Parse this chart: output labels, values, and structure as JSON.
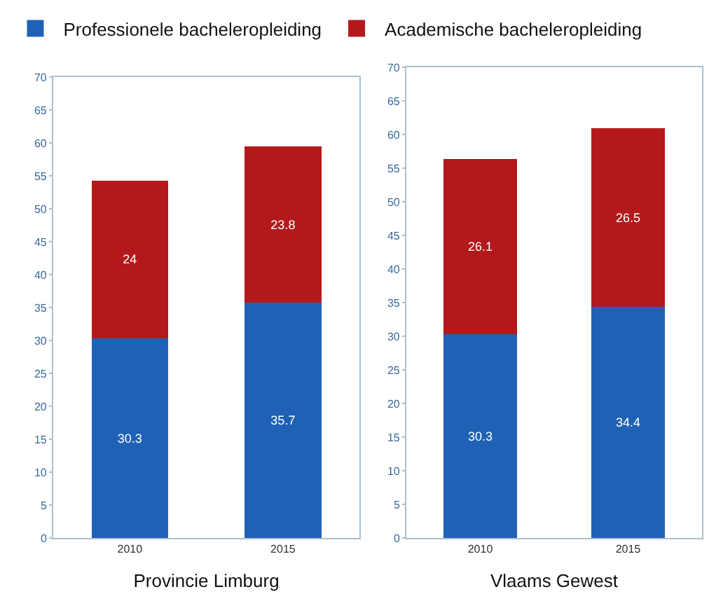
{
  "chart_data": [
    {
      "type": "bar",
      "stacked": true,
      "xlabel": "Provincie Limburg",
      "categories": [
        "2010",
        "2015"
      ],
      "ylim": [
        0,
        70
      ],
      "yticks": [
        0,
        5,
        10,
        15,
        20,
        25,
        30,
        35,
        40,
        45,
        50,
        55,
        60,
        65,
        70
      ],
      "grid": false,
      "legend": "top",
      "data_labels": true,
      "series": [
        {
          "name": "Professionele bacheleropleiding",
          "color": "#1f62b5",
          "values": [
            30.3,
            35.7
          ]
        },
        {
          "name": "Academische bacheleropleiding",
          "color": "#b3191c",
          "values": [
            24.0,
            23.8
          ]
        }
      ]
    },
    {
      "type": "bar",
      "stacked": true,
      "xlabel": "Vlaams Gewest",
      "categories": [
        "2010",
        "2015"
      ],
      "ylim": [
        0,
        70
      ],
      "yticks": [
        0,
        5,
        10,
        15,
        20,
        25,
        30,
        35,
        40,
        45,
        50,
        55,
        60,
        65,
        70
      ],
      "grid": false,
      "legend": false,
      "data_labels": true,
      "series": [
        {
          "color": "#1f62b5",
          "values": [
            30.3,
            34.4
          ]
        },
        {
          "color": "#b3191c",
          "values": [
            26.1,
            26.5
          ]
        }
      ]
    }
  ]
}
